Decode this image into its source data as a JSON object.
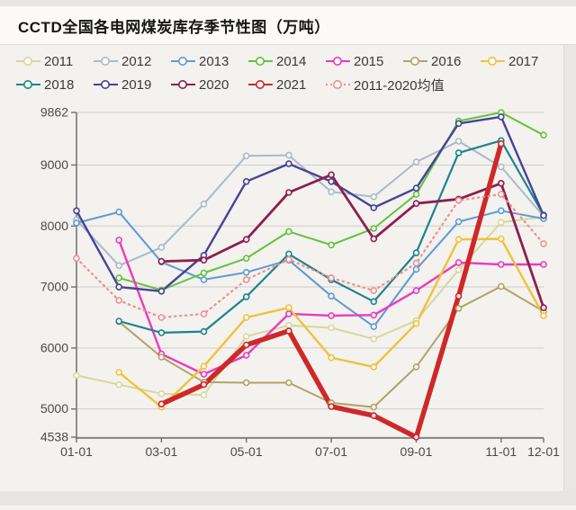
{
  "page": {
    "title": "CCTD全国各电网煤炭库存季节性图（万吨）"
  },
  "chart_data": {
    "type": "line",
    "title": "CCTD全国各电网煤炭库存季节性图（万吨）",
    "unit": "万吨",
    "legend_position": "top",
    "grid": true,
    "categories": [
      "01-01",
      "02-01",
      "03-01",
      "04-01",
      "05-01",
      "06-01",
      "07-01",
      "08-01",
      "09-01",
      "10-01",
      "11-01",
      "12-01"
    ],
    "x_tick_labels": [
      "01-01",
      "03-01",
      "05-01",
      "07-01",
      "09-01",
      "11-01",
      "12-01"
    ],
    "y_ticks": [
      4538,
      5000,
      6000,
      7000,
      8000,
      9000,
      9862
    ],
    "ylim": [
      4538,
      9862
    ],
    "series": [
      {
        "name": "2011",
        "color": "#d8d79c",
        "width": 2,
        "dashed": false,
        "values": [
          5550,
          5400,
          5250,
          5230,
          6190,
          6370,
          6330,
          6150,
          6450,
          7280,
          8060,
          8150
        ]
      },
      {
        "name": "2012",
        "color": "#a9bacb",
        "width": 2,
        "dashed": false,
        "values": [
          8100,
          7350,
          7650,
          8360,
          9150,
          9160,
          8560,
          8480,
          9050,
          9390,
          8970,
          8160
        ]
      },
      {
        "name": "2013",
        "color": "#5e9bd3",
        "width": 2,
        "dashed": false,
        "values": [
          8050,
          8230,
          7410,
          7120,
          7240,
          7440,
          6850,
          6350,
          7290,
          8070,
          8250,
          8120
        ]
      },
      {
        "name": "2014",
        "color": "#61c23c",
        "width": 2,
        "dashed": false,
        "values": [
          null,
          7150,
          6950,
          7230,
          7470,
          7910,
          7690,
          7960,
          8520,
          9720,
          9862,
          9490
        ]
      },
      {
        "name": "2015",
        "color": "#ea3bbf",
        "width": 2.4,
        "dashed": false,
        "values": [
          null,
          7770,
          5900,
          5570,
          5880,
          6560,
          6530,
          6540,
          6940,
          7400,
          7370,
          7370
        ]
      },
      {
        "name": "2016",
        "color": "#b2a268",
        "width": 2,
        "dashed": false,
        "values": [
          null,
          6430,
          5850,
          5440,
          5430,
          5430,
          5100,
          5030,
          5690,
          6650,
          7010,
          6600
        ]
      },
      {
        "name": "2017",
        "color": "#efc239",
        "width": 2.4,
        "dashed": false,
        "values": [
          null,
          5600,
          5030,
          5700,
          6500,
          6660,
          5840,
          5690,
          6400,
          7780,
          7790,
          6530
        ]
      },
      {
        "name": "2018",
        "color": "#1e838b",
        "width": 2.2,
        "dashed": false,
        "values": [
          null,
          6440,
          6250,
          6270,
          6840,
          7540,
          7120,
          6760,
          7560,
          9200,
          9400,
          8180
        ]
      },
      {
        "name": "2019",
        "color": "#474395",
        "width": 2.4,
        "dashed": false,
        "values": [
          8250,
          7000,
          6930,
          7520,
          8730,
          9020,
          8730,
          8300,
          8620,
          9680,
          9790,
          8170
        ]
      },
      {
        "name": "2020",
        "color": "#8e1e4d",
        "width": 2.8,
        "dashed": false,
        "values": [
          null,
          null,
          7420,
          7440,
          7780,
          8550,
          8840,
          7790,
          8370,
          8440,
          8700,
          6660
        ]
      },
      {
        "name": "2021",
        "color": "#ce2828",
        "width": 5.5,
        "dashed": false,
        "values": [
          null,
          null,
          5080,
          5400,
          6050,
          6280,
          5040,
          4890,
          4538,
          6850,
          9350,
          null
        ]
      },
      {
        "name": "2011-2020均值",
        "color": "#ee8f8f",
        "width": 2.2,
        "dashed": true,
        "values": [
          7470,
          6780,
          6500,
          6560,
          7120,
          7450,
          7150,
          6940,
          7390,
          8420,
          8520,
          7710
        ]
      }
    ]
  }
}
